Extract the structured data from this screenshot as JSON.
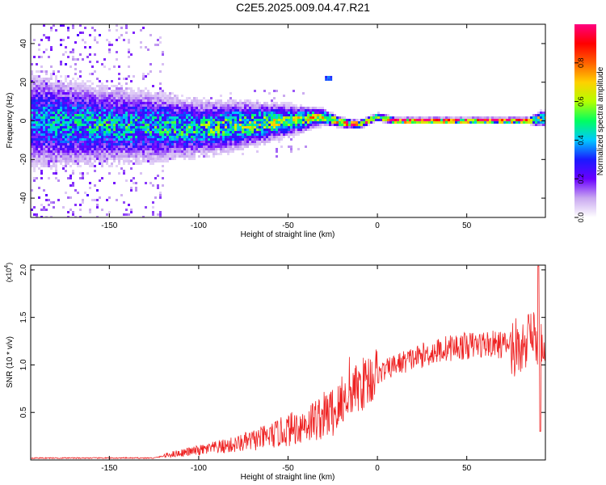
{
  "title": "C2E5.2025.009.04.47.R21",
  "chart_data": [
    {
      "type": "heatmap",
      "title": "",
      "xlabel": "Height of straight line (km)",
      "ylabel": "Frequency (Hz)",
      "xlim": [
        -194,
        94
      ],
      "ylim": [
        -50,
        50
      ],
      "x_ticks": [
        -150,
        -100,
        -50,
        0,
        50
      ],
      "x_tick_labels": [
        "-150",
        "-100",
        "-50",
        "0",
        "50"
      ],
      "y_ticks": [
        -40,
        -20,
        0,
        20,
        40
      ],
      "y_tick_labels": [
        "-40",
        "-20",
        "0",
        "20",
        "40"
      ],
      "colorbar": {
        "label": "Normalized spectral amplitude",
        "range": [
          0,
          1
        ],
        "ticks": [
          0.0,
          0.2,
          0.4,
          0.6,
          0.8
        ],
        "tick_labels": [
          "0.0",
          "0.2",
          "0.4",
          "0.6",
          "0.8"
        ],
        "colors": [
          "#ffffff",
          "#c9a8f0",
          "#6a00ff",
          "#1a1aff",
          "#00c8ff",
          "#00ff60",
          "#b4ff00",
          "#ffd000",
          "#ff6000",
          "#ff0000",
          "#ff0080"
        ]
      },
      "ridge": [
        {
          "x": -190,
          "f": 0,
          "a": 0.35,
          "w": 12
        },
        {
          "x": -160,
          "f": -2,
          "a": 0.4,
          "w": 10
        },
        {
          "x": -130,
          "f": -3,
          "a": 0.4,
          "w": 9
        },
        {
          "x": -100,
          "f": -4,
          "a": 0.45,
          "w": 7
        },
        {
          "x": -75,
          "f": -2,
          "a": 0.5,
          "w": 6
        },
        {
          "x": -50,
          "f": 0,
          "a": 0.55,
          "w": 4
        },
        {
          "x": -30,
          "f": 2,
          "a": 0.6,
          "w": 2
        },
        {
          "x": -20,
          "f": -1,
          "a": 0.85,
          "w": 1.2
        },
        {
          "x": -10,
          "f": -2,
          "a": 0.95,
          "w": 1
        },
        {
          "x": 0,
          "f": 2,
          "a": 0.7,
          "w": 1
        },
        {
          "x": 10,
          "f": 0,
          "a": 0.95,
          "w": 0.8
        },
        {
          "x": 50,
          "f": 0,
          "a": 0.95,
          "w": 0.8
        },
        {
          "x": 85,
          "f": 0,
          "a": 0.9,
          "w": 0.8
        },
        {
          "x": 92,
          "f": 1,
          "a": 0.5,
          "w": 2
        }
      ]
    },
    {
      "type": "line",
      "title": "",
      "xlabel": "Height of straight line (km)",
      "ylabel": "SNR (10 * v/v)",
      "y_multiplier": "(x10",
      "y_multiplier_exp": "4",
      "y_multiplier_close": ")",
      "xlim": [
        -194,
        94
      ],
      "ylim": [
        0,
        2.05
      ],
      "x_ticks": [
        -150,
        -100,
        -50,
        0,
        50
      ],
      "x_tick_labels": [
        "-150",
        "-100",
        "-50",
        "0",
        "50"
      ],
      "y_ticks": [
        0.5,
        1.0,
        1.5,
        2.0
      ],
      "y_tick_labels": [
        "0.5",
        "1.0",
        "1.5",
        "2.0"
      ],
      "color": "#ee2222",
      "trend": [
        {
          "x": -194,
          "y": 0.02
        },
        {
          "x": -125,
          "y": 0.02
        },
        {
          "x": -115,
          "y": 0.06
        },
        {
          "x": -100,
          "y": 0.1
        },
        {
          "x": -80,
          "y": 0.16
        },
        {
          "x": -60,
          "y": 0.25
        },
        {
          "x": -40,
          "y": 0.38
        },
        {
          "x": -20,
          "y": 0.55
        },
        {
          "x": -15,
          "y": 0.7
        },
        {
          "x": -5,
          "y": 0.85
        },
        {
          "x": 10,
          "y": 1.0
        },
        {
          "x": 25,
          "y": 1.1
        },
        {
          "x": 40,
          "y": 1.18
        },
        {
          "x": 60,
          "y": 1.22
        },
        {
          "x": 80,
          "y": 1.2
        },
        {
          "x": 88,
          "y": 1.25
        },
        {
          "x": 94,
          "y": 1.18
        }
      ]
    }
  ]
}
